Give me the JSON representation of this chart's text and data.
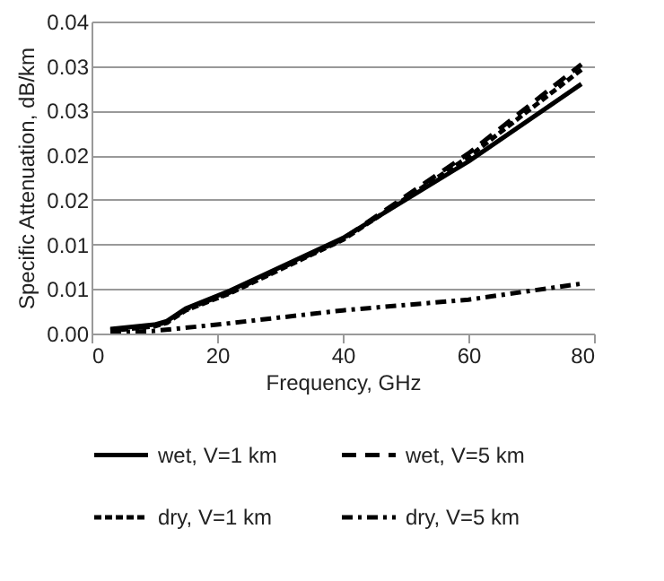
{
  "chart_data": {
    "type": "line",
    "xlabel": "Frequency, GHz",
    "ylabel": "Specific Attenuation, dB/km",
    "xlim": [
      0,
      80
    ],
    "xticks": [
      0,
      20,
      40,
      60,
      80
    ],
    "ylim": [
      0,
      0.035
    ],
    "yticks": [
      {
        "value": 0,
        "label": "0.00"
      },
      {
        "value": 0.005,
        "label": "0.01"
      },
      {
        "value": 0.01,
        "label": "0.01"
      },
      {
        "value": 0.015,
        "label": "0.02"
      },
      {
        "value": 0.02,
        "label": "0.02"
      },
      {
        "value": 0.025,
        "label": "0.03"
      },
      {
        "value": 0.03,
        "label": "0.03"
      },
      {
        "value": 0.035,
        "label": "0.04"
      }
    ],
    "grid": "y",
    "legend": "bottom",
    "series": [
      {
        "name": "wet, V=1 km",
        "color": "#000000",
        "line_style": "solid",
        "x": [
          3,
          10,
          12,
          15,
          22,
          40,
          60,
          78
        ],
        "values": [
          0.0005,
          0.001,
          0.0014,
          0.0028,
          0.0048,
          0.0107,
          0.0193,
          0.028
        ]
      },
      {
        "name": "wet, V=5 km",
        "color": "#000000",
        "line_style": "dashed",
        "x": [
          3,
          10,
          12,
          15,
          22,
          40,
          60,
          78
        ],
        "values": [
          0.0004,
          0.0009,
          0.0013,
          0.0027,
          0.0046,
          0.0106,
          0.0202,
          0.0302
        ]
      },
      {
        "name": "dry, V=1 km",
        "color": "#000000",
        "line_style": "dotted",
        "x": [
          3,
          10,
          12,
          15,
          22,
          40,
          60,
          78
        ],
        "values": [
          0.0003,
          0.0008,
          0.0012,
          0.0026,
          0.0045,
          0.0105,
          0.0198,
          0.0296
        ]
      },
      {
        "name": "dry, V=5 km",
        "color": "#000000",
        "line_style": "dashdot",
        "x": [
          3,
          10,
          20,
          40,
          60,
          78
        ],
        "values": [
          0.0001,
          0.0003,
          0.001,
          0.0026,
          0.0038,
          0.0056
        ]
      }
    ]
  }
}
